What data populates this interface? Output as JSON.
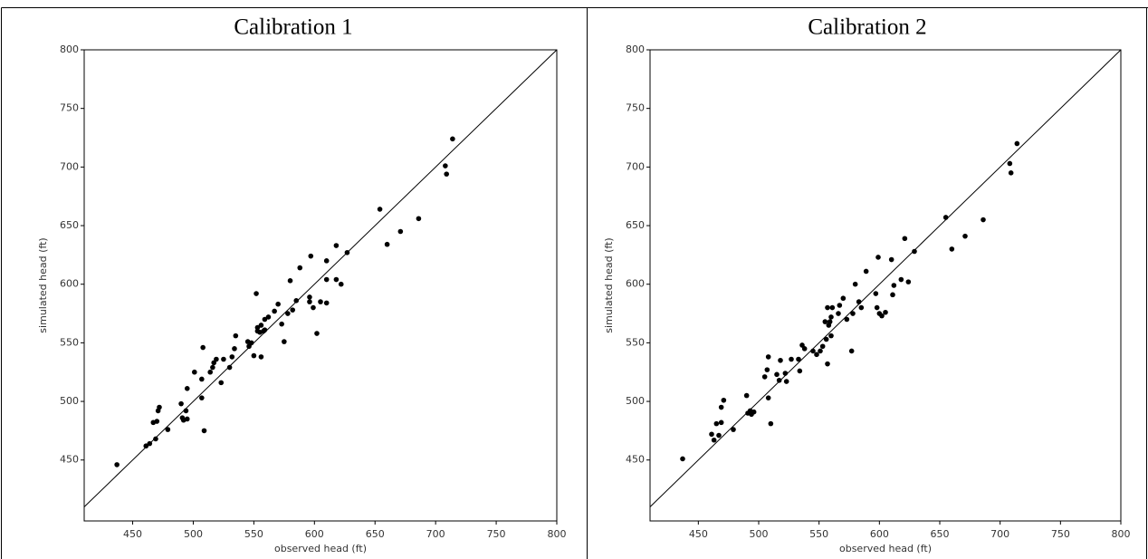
{
  "chart_data": [
    {
      "type": "scatter",
      "title": "Calibration 1",
      "x_label": "observed head (ft)",
      "y_label": "simulated head (ft)",
      "color": "#000000",
      "xlim": [
        410,
        800
      ],
      "ylim": [
        398,
        800
      ],
      "xticks": [
        450,
        500,
        550,
        600,
        650,
        700,
        750,
        800
      ],
      "yticks": [
        450,
        500,
        550,
        600,
        650,
        700,
        750,
        800
      ],
      "x": [
        437,
        461,
        464,
        467,
        469,
        470,
        471,
        472,
        479,
        490,
        491,
        492,
        494,
        495,
        495,
        501,
        507,
        507,
        508,
        509,
        514,
        516,
        517,
        519,
        523,
        525,
        530,
        532,
        534,
        535,
        545,
        546,
        548,
        550,
        552,
        553,
        553,
        555,
        556,
        556,
        558,
        559,
        559,
        562,
        567,
        570,
        573,
        575,
        578,
        580,
        582,
        585,
        588,
        596,
        596,
        597,
        599,
        602,
        605,
        610,
        610,
        610,
        618,
        618,
        622,
        627,
        654,
        660,
        671,
        686,
        708,
        709,
        714
      ],
      "values": [
        446,
        462,
        464,
        482,
        468,
        483,
        492,
        495,
        476,
        498,
        486,
        484,
        492,
        485,
        511,
        525,
        503,
        519,
        546,
        475,
        525,
        529,
        533,
        536,
        516,
        536,
        529,
        538,
        545,
        556,
        551,
        547,
        550,
        539,
        592,
        560,
        563,
        559,
        538,
        565,
        560,
        570,
        561,
        572,
        577,
        583,
        566,
        551,
        575,
        603,
        578,
        586,
        614,
        585,
        589,
        624,
        580,
        558,
        585,
        620,
        584,
        604,
        633,
        604,
        600,
        627,
        664,
        634,
        645,
        656,
        701,
        694,
        724
      ]
    },
    {
      "type": "scatter",
      "title": "Calibration 2",
      "x_label": "observed head (ft)",
      "y_label": "simulated head (ft)",
      "color": "#000000",
      "xlim": [
        410,
        800
      ],
      "ylim": [
        398,
        800
      ],
      "xticks": [
        450,
        500,
        550,
        600,
        650,
        700,
        750,
        800
      ],
      "yticks": [
        450,
        500,
        550,
        600,
        650,
        700,
        750,
        800
      ],
      "x": [
        437,
        461,
        463,
        465,
        467,
        469,
        469,
        471,
        479,
        490,
        491,
        493,
        494,
        496,
        505,
        507,
        508,
        508,
        510,
        515,
        517,
        518,
        522,
        523,
        527,
        533,
        534,
        536,
        538,
        545,
        548,
        551,
        553,
        555,
        556,
        557,
        557,
        558,
        559,
        560,
        560,
        561,
        566,
        567,
        570,
        573,
        577,
        578,
        580,
        583,
        585,
        589,
        597,
        598,
        599,
        600,
        602,
        605,
        610,
        611,
        612,
        618,
        621,
        624,
        629,
        655,
        660,
        671,
        686,
        708,
        709,
        714
      ],
      "values": [
        451,
        472,
        467,
        481,
        471,
        482,
        495,
        501,
        476,
        505,
        490,
        492,
        489,
        491,
        521,
        527,
        538,
        503,
        481,
        523,
        518,
        535,
        524,
        517,
        536,
        536,
        526,
        548,
        545,
        543,
        540,
        543,
        547,
        568,
        553,
        532,
        580,
        565,
        568,
        572,
        556,
        580,
        575,
        582,
        588,
        570,
        543,
        575,
        600,
        585,
        580,
        611,
        592,
        580,
        623,
        575,
        573,
        576,
        621,
        591,
        599,
        604,
        639,
        602,
        628,
        657,
        630,
        641,
        655,
        703,
        695,
        720
      ]
    }
  ]
}
